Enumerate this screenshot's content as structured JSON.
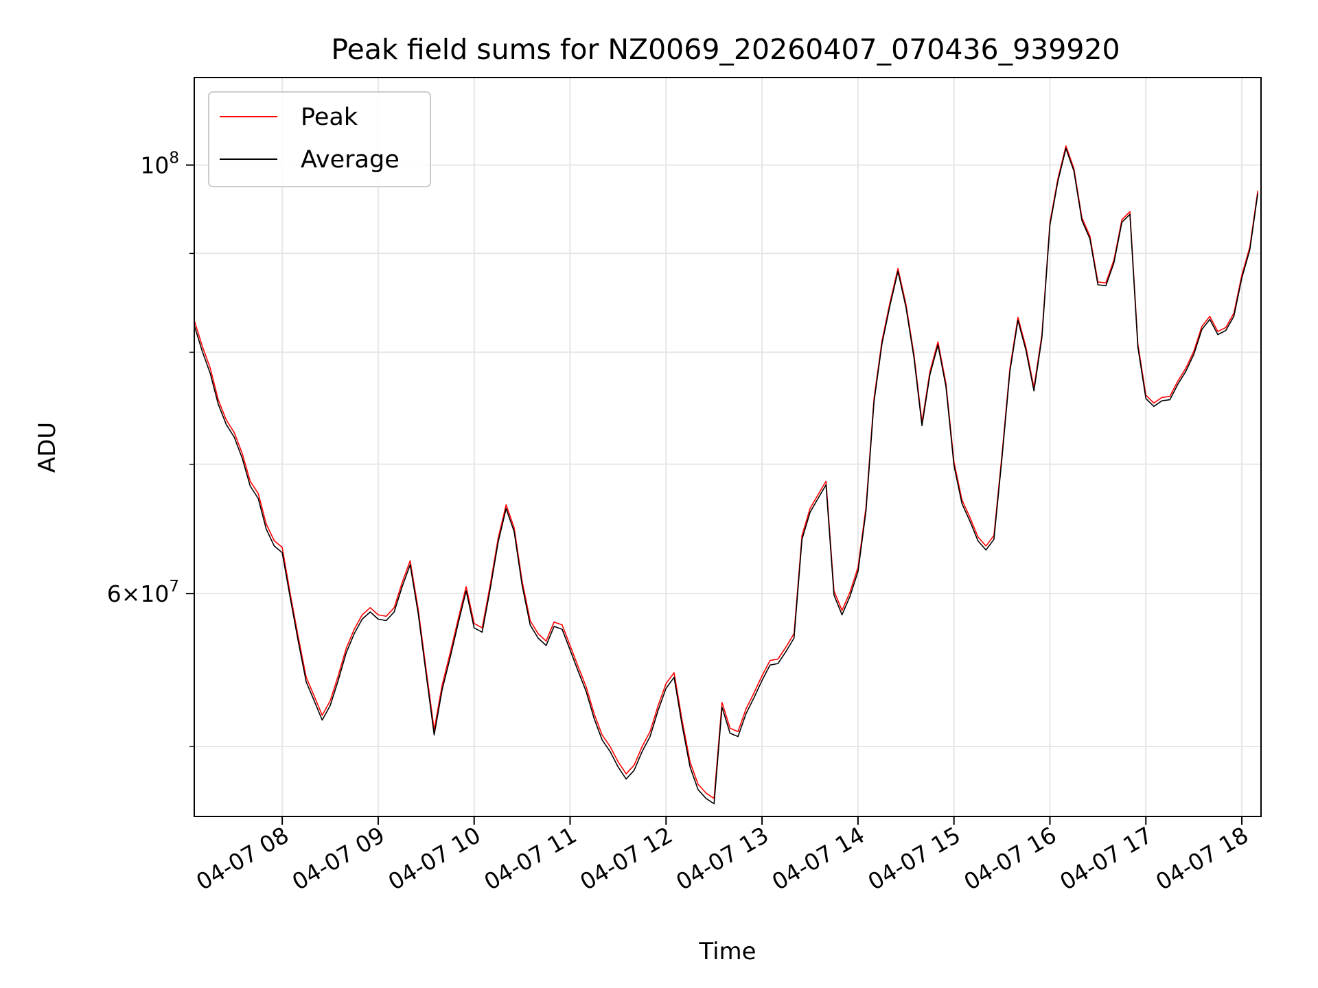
{
  "chart_data": {
    "type": "line",
    "title": "Peak field sums for NZ0069_20260407_070436_939920",
    "xlabel": "Time",
    "ylabel": "ADU",
    "yscale": "log",
    "xlim": [
      "2026-04-07 07:05",
      "2026-04-07 18:12"
    ],
    "ylim": [
      46000000,
      111000000
    ],
    "x_ticks": [
      "04-07 08",
      "04-07 09",
      "04-07 10",
      "04-07 11",
      "04-07 12",
      "04-07 13",
      "04-07 14",
      "04-07 15",
      "04-07 16",
      "04-07 17",
      "04-07 18"
    ],
    "y_ticks": [
      {
        "value": 100000000,
        "mant": "",
        "exp": "8"
      },
      {
        "value": 60000000,
        "mant": "6",
        "exp": "7"
      }
    ],
    "y_minor_ticks": [
      50000000,
      70000000,
      80000000,
      90000000
    ],
    "grid": true,
    "legend": "top-left",
    "colors": {
      "peak": "#ff0000",
      "average": "#000000"
    },
    "x": [
      "07:05",
      "07:10",
      "07:15",
      "07:20",
      "07:25",
      "07:30",
      "07:35",
      "07:40",
      "07:45",
      "07:50",
      "07:55",
      "08:00",
      "08:05",
      "08:10",
      "08:15",
      "08:20",
      "08:25",
      "08:30",
      "08:35",
      "08:40",
      "08:45",
      "08:50",
      "08:55",
      "09:00",
      "09:05",
      "09:10",
      "09:15",
      "09:20",
      "09:25",
      "09:30",
      "09:35",
      "09:40",
      "09:45",
      "09:50",
      "09:55",
      "10:00",
      "10:05",
      "10:10",
      "10:15",
      "10:20",
      "10:25",
      "10:30",
      "10:35",
      "10:40",
      "10:45",
      "10:50",
      "10:55",
      "11:00",
      "11:05",
      "11:10",
      "11:15",
      "11:20",
      "11:25",
      "11:30",
      "11:35",
      "11:40",
      "11:45",
      "11:50",
      "11:55",
      "12:00",
      "12:05",
      "12:10",
      "12:15",
      "12:20",
      "12:25",
      "12:30",
      "12:35",
      "12:40",
      "12:45",
      "12:50",
      "12:55",
      "13:00",
      "13:05",
      "13:10",
      "13:15",
      "13:20",
      "13:25",
      "13:30",
      "13:35",
      "13:40",
      "13:45",
      "13:50",
      "13:55",
      "14:00",
      "14:05",
      "14:10",
      "14:15",
      "14:20",
      "14:25",
      "14:30",
      "14:35",
      "14:40",
      "14:45",
      "14:50",
      "14:55",
      "15:00",
      "15:05",
      "15:10",
      "15:15",
      "15:20",
      "15:25",
      "15:30",
      "15:35",
      "15:40",
      "15:45",
      "15:50",
      "15:55",
      "16:00",
      "16:05",
      "16:10",
      "16:15",
      "16:20",
      "16:25",
      "16:30",
      "16:35",
      "16:40",
      "16:45",
      "16:50",
      "16:55",
      "17:00",
      "17:05",
      "17:10",
      "17:15",
      "17:20",
      "17:25",
      "17:30",
      "17:35",
      "17:40",
      "17:45",
      "17:50",
      "17:55",
      "18:00",
      "18:05",
      "18:10"
    ],
    "series": [
      {
        "name": "Peak",
        "values": [
          83100000,
          80600000,
          78500000,
          75600000,
          73800000,
          72700000,
          70900000,
          68600000,
          67600000,
          65200000,
          63900000,
          63400000,
          60000000,
          57000000,
          54300000,
          53100000,
          51900000,
          52800000,
          54400000,
          56200000,
          57500000,
          58500000,
          59000000,
          58500000,
          58400000,
          59000000,
          60800000,
          62400000,
          58900000,
          54800000,
          51000000,
          53800000,
          55900000,
          58200000,
          60500000,
          57900000,
          57600000,
          60600000,
          64100000,
          66700000,
          64900000,
          60900000,
          58100000,
          57200000,
          56700000,
          58000000,
          57800000,
          56400000,
          55000000,
          53700000,
          52000000,
          50700000,
          50000000,
          49100000,
          48400000,
          48900000,
          50000000,
          50900000,
          52500000,
          53900000,
          54600000,
          51600000,
          49100000,
          47800000,
          47300000,
          47000000,
          52700000,
          51100000,
          50900000,
          52300000,
          53300000,
          54400000,
          55400000,
          55500000,
          56300000,
          57200000,
          64300000,
          66400000,
          67500000,
          68600000,
          60200000,
          58800000,
          60100000,
          61900000,
          66500000,
          75700000,
          81100000,
          84900000,
          88400000,
          84700000,
          79800000,
          73600000,
          78200000,
          81000000,
          77100000,
          70200000,
          67100000,
          65700000,
          64200000,
          63500000,
          64300000,
          70800000,
          78500000,
          83400000,
          80500000,
          76700000,
          81700000,
          93400000,
          98400000,
          102300000,
          99600000,
          93900000,
          91900000,
          87000000,
          86900000,
          89300000,
          93700000,
          94600000,
          80800000,
          76000000,
          75300000,
          75800000,
          75900000,
          77300000,
          78500000,
          80100000,
          82500000,
          83500000,
          82000000,
          82400000,
          83800000,
          87700000,
          90700000,
          97000000
        ]
      },
      {
        "name": "Average",
        "values": [
          82600000,
          80100000,
          78000000,
          75200000,
          73400000,
          72300000,
          70500000,
          68200000,
          67200000,
          64800000,
          63500000,
          63000000,
          59700000,
          56700000,
          54000000,
          52800000,
          51600000,
          52500000,
          54100000,
          55900000,
          57200000,
          58200000,
          58700000,
          58200000,
          58100000,
          58700000,
          60500000,
          62100000,
          58600000,
          54500000,
          50700000,
          53500000,
          55600000,
          57900000,
          60200000,
          57600000,
          57300000,
          60300000,
          63800000,
          66400000,
          64600000,
          60600000,
          57800000,
          56900000,
          56400000,
          57700000,
          57500000,
          56100000,
          54700000,
          53400000,
          51700000,
          50400000,
          49700000,
          48800000,
          48100000,
          48600000,
          49700000,
          50600000,
          52200000,
          53600000,
          54300000,
          51300000,
          48800000,
          47500000,
          47000000,
          46700000,
          52400000,
          50800000,
          50600000,
          52000000,
          53000000,
          54100000,
          55100000,
          55200000,
          56000000,
          56900000,
          64000000,
          66100000,
          67200000,
          68300000,
          59900000,
          58500000,
          59800000,
          61600000,
          66200000,
          75400000,
          80800000,
          84600000,
          88100000,
          84400000,
          79500000,
          73300000,
          77900000,
          80700000,
          76800000,
          69900000,
          66800000,
          65400000,
          63900000,
          63200000,
          64000000,
          70500000,
          78200000,
          83100000,
          80200000,
          76400000,
          81400000,
          93100000,
          98100000,
          102000000,
          99300000,
          93600000,
          91600000,
          86700000,
          86600000,
          89000000,
          93400000,
          94300000,
          80500000,
          75700000,
          75000000,
          75500000,
          75600000,
          77000000,
          78200000,
          79800000,
          82200000,
          83200000,
          81700000,
          82100000,
          83500000,
          87400000,
          90400000,
          96700000
        ]
      }
    ]
  }
}
